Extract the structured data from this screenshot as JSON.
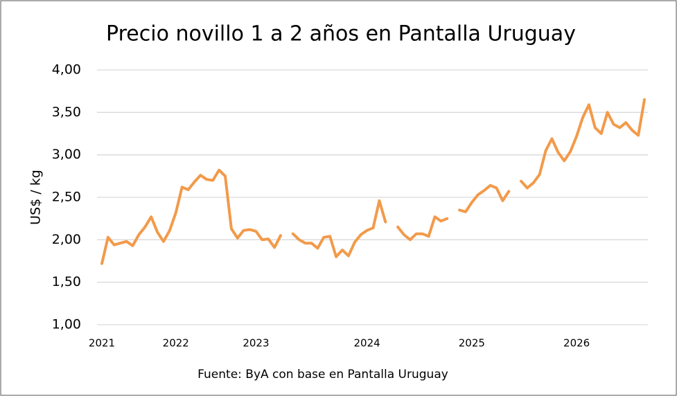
{
  "chart_data": {
    "type": "line",
    "title": "Precio novillo 1 a 2 años en Pantalla Uruguay",
    "y_label": "US$ / kg",
    "source": "Fuente: ByA con base en Pantalla Uruguay",
    "categories": [
      "2021",
      null,
      null,
      null,
      null,
      null,
      null,
      null,
      null,
      null,
      null,
      null,
      "2022",
      null,
      null,
      null,
      null,
      null,
      null,
      null,
      null,
      null,
      null,
      null,
      null,
      "2023",
      null,
      null,
      null,
      null,
      null,
      null,
      null,
      null,
      null,
      null,
      null,
      null,
      null,
      null,
      null,
      null,
      null,
      "2024",
      null,
      null,
      null,
      null,
      null,
      null,
      null,
      null,
      null,
      null,
      null,
      null,
      null,
      null,
      null,
      null,
      "2025",
      null,
      null,
      null,
      null,
      null,
      null,
      null,
      null,
      null,
      null,
      null,
      null,
      null,
      null,
      null,
      null,
      "2026",
      null,
      null,
      null,
      null,
      null,
      null,
      null,
      null,
      null,
      null,
      null
    ],
    "series": [
      {
        "name": "Precio",
        "color": "#f29a4a",
        "values": [
          1.72,
          2.03,
          1.94,
          1.96,
          1.98,
          1.93,
          2.06,
          2.15,
          2.27,
          2.09,
          1.98,
          2.11,
          2.32,
          2.62,
          2.59,
          2.68,
          2.76,
          2.71,
          2.7,
          2.82,
          2.75,
          2.13,
          2.02,
          2.11,
          2.12,
          2.1,
          2.0,
          2.01,
          1.91,
          2.05,
          null,
          2.07,
          2.0,
          1.96,
          1.96,
          1.9,
          2.03,
          2.04,
          1.8,
          1.88,
          1.81,
          1.97,
          2.06,
          2.11,
          2.14,
          2.46,
          2.21,
          null,
          2.15,
          2.06,
          2.0,
          2.07,
          2.07,
          2.04,
          2.27,
          2.22,
          2.25,
          null,
          2.35,
          2.33,
          2.44,
          2.53,
          2.58,
          2.64,
          2.61,
          2.46,
          2.57,
          null,
          2.69,
          2.61,
          2.67,
          2.77,
          3.05,
          3.19,
          3.03,
          2.93,
          3.04,
          3.22,
          3.44,
          3.59,
          3.32,
          3.25,
          3.5,
          3.36,
          3.32,
          3.38,
          3.29,
          3.23,
          3.65
        ]
      }
    ],
    "ylim": [
      1,
      4
    ],
    "yticks": [
      {
        "value": 1,
        "label": "1,00"
      },
      {
        "value": 1.5,
        "label": "1,50"
      },
      {
        "value": 2,
        "label": "2,00"
      },
      {
        "value": 2.5,
        "label": "2,50"
      },
      {
        "value": 3,
        "label": "3,00"
      },
      {
        "value": 3.5,
        "label": "3,50"
      },
      {
        "value": 4,
        "label": "4,00"
      }
    ],
    "grid": true
  }
}
